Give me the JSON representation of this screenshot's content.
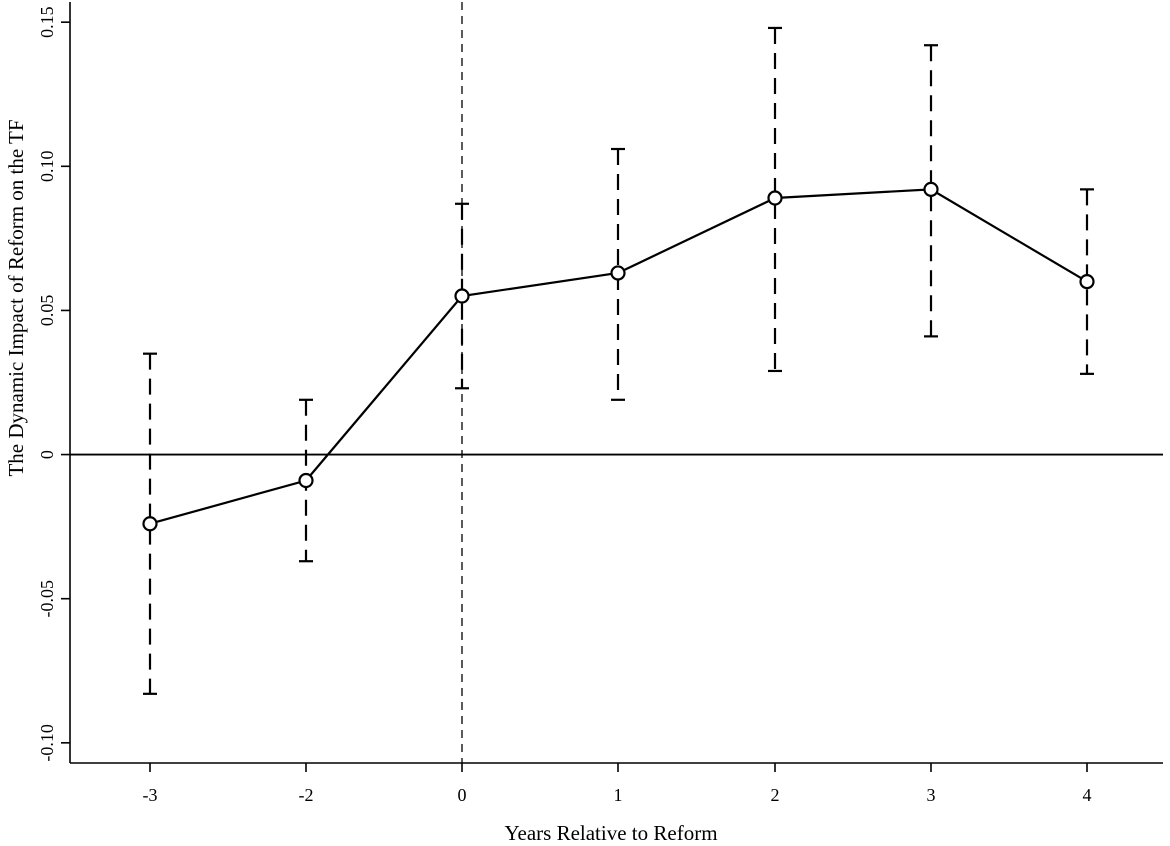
{
  "chart_data": {
    "type": "line",
    "title": "",
    "xlabel": "Years Relative to Reform",
    "ylabel": "The Dynamic Impact of Reform on the TF",
    "x_categories": [
      "-3",
      "-2",
      "0",
      "1",
      "2",
      "3",
      "4"
    ],
    "y_ticks": [
      -0.1,
      -0.05,
      0,
      0.05,
      0.1,
      0.15
    ],
    "y_tick_labels": [
      "-0.10",
      "-0.05",
      "0",
      "0.05",
      "0.10",
      "0.15"
    ],
    "ylim": [
      -0.107,
      0.157
    ],
    "grid": false,
    "reference_lines": {
      "y": 0,
      "x_category": "0"
    },
    "series": [
      {
        "values": [
          -0.024,
          -0.009,
          0.055,
          0.063,
          0.089,
          0.092,
          0.06
        ],
        "ci_lower": [
          -0.083,
          -0.037,
          0.023,
          0.019,
          0.029,
          0.041,
          0.028
        ],
        "ci_upper": [
          0.035,
          0.019,
          0.087,
          0.106,
          0.148,
          0.142,
          0.092
        ]
      }
    ],
    "colors": {
      "line": "#000000",
      "background": "#ffffff"
    }
  }
}
